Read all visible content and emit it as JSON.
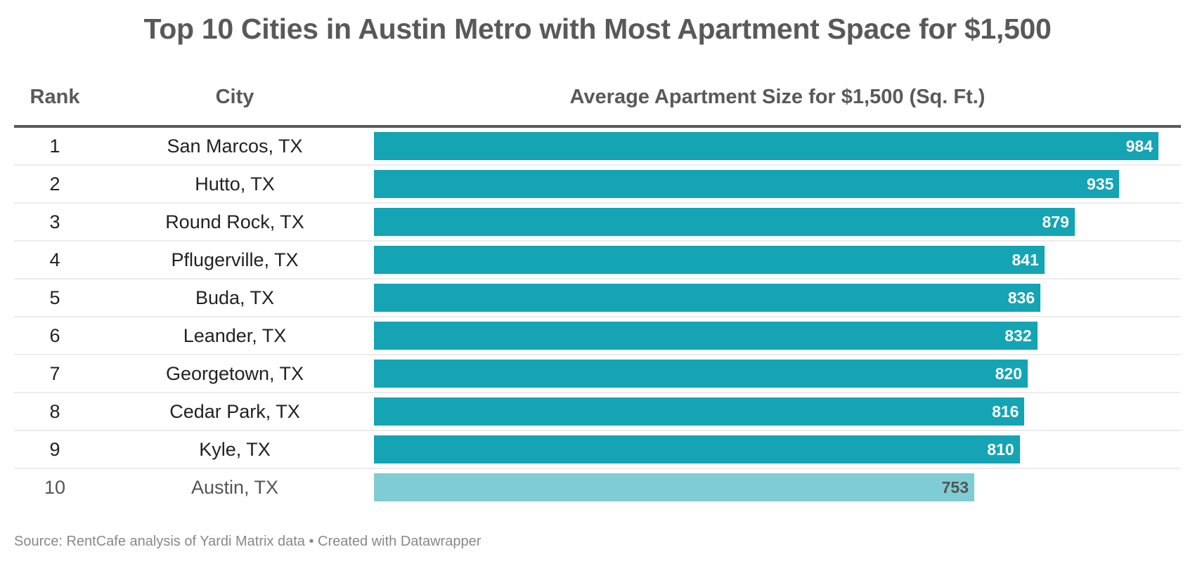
{
  "chart_data": {
    "type": "table",
    "title": "Top 10 Cities in Austin Metro with Most Apartment Space for $1,500",
    "columns": [
      "Rank",
      "City",
      "Average Apartment Size for $1,500 (Sq. Ft.)"
    ],
    "rows": [
      {
        "rank": "1",
        "city": "San Marcos, TX",
        "value": 984,
        "highlight": true
      },
      {
        "rank": "2",
        "city": "Hutto, TX",
        "value": 935,
        "highlight": true
      },
      {
        "rank": "3",
        "city": "Round Rock, TX",
        "value": 879,
        "highlight": true
      },
      {
        "rank": "4",
        "city": "Pflugerville, TX",
        "value": 841,
        "highlight": true
      },
      {
        "rank": "5",
        "city": "Buda, TX",
        "value": 836,
        "highlight": true
      },
      {
        "rank": "6",
        "city": "Leander, TX",
        "value": 832,
        "highlight": true
      },
      {
        "rank": "7",
        "city": "Georgetown, TX",
        "value": 820,
        "highlight": true
      },
      {
        "rank": "8",
        "city": "Cedar Park, TX",
        "value": 816,
        "highlight": true
      },
      {
        "rank": "9",
        "city": "Kyle, TX",
        "value": 810,
        "highlight": true
      },
      {
        "rank": "10",
        "city": "Austin, TX",
        "value": 753,
        "highlight": false
      }
    ],
    "bar_max": 984,
    "colors": {
      "primary": "#14a4b4",
      "muted": "#7fccd4"
    }
  },
  "title": "Top 10 Cities in Austin Metro with Most Apartment Space for $1,500",
  "headers": {
    "rank": "Rank",
    "city": "City",
    "size": "Average Apartment Size for $1,500 (Sq. Ft.)"
  },
  "footer": "Source: RentCafe analysis of Yardi Matrix data • Created with Datawrapper"
}
